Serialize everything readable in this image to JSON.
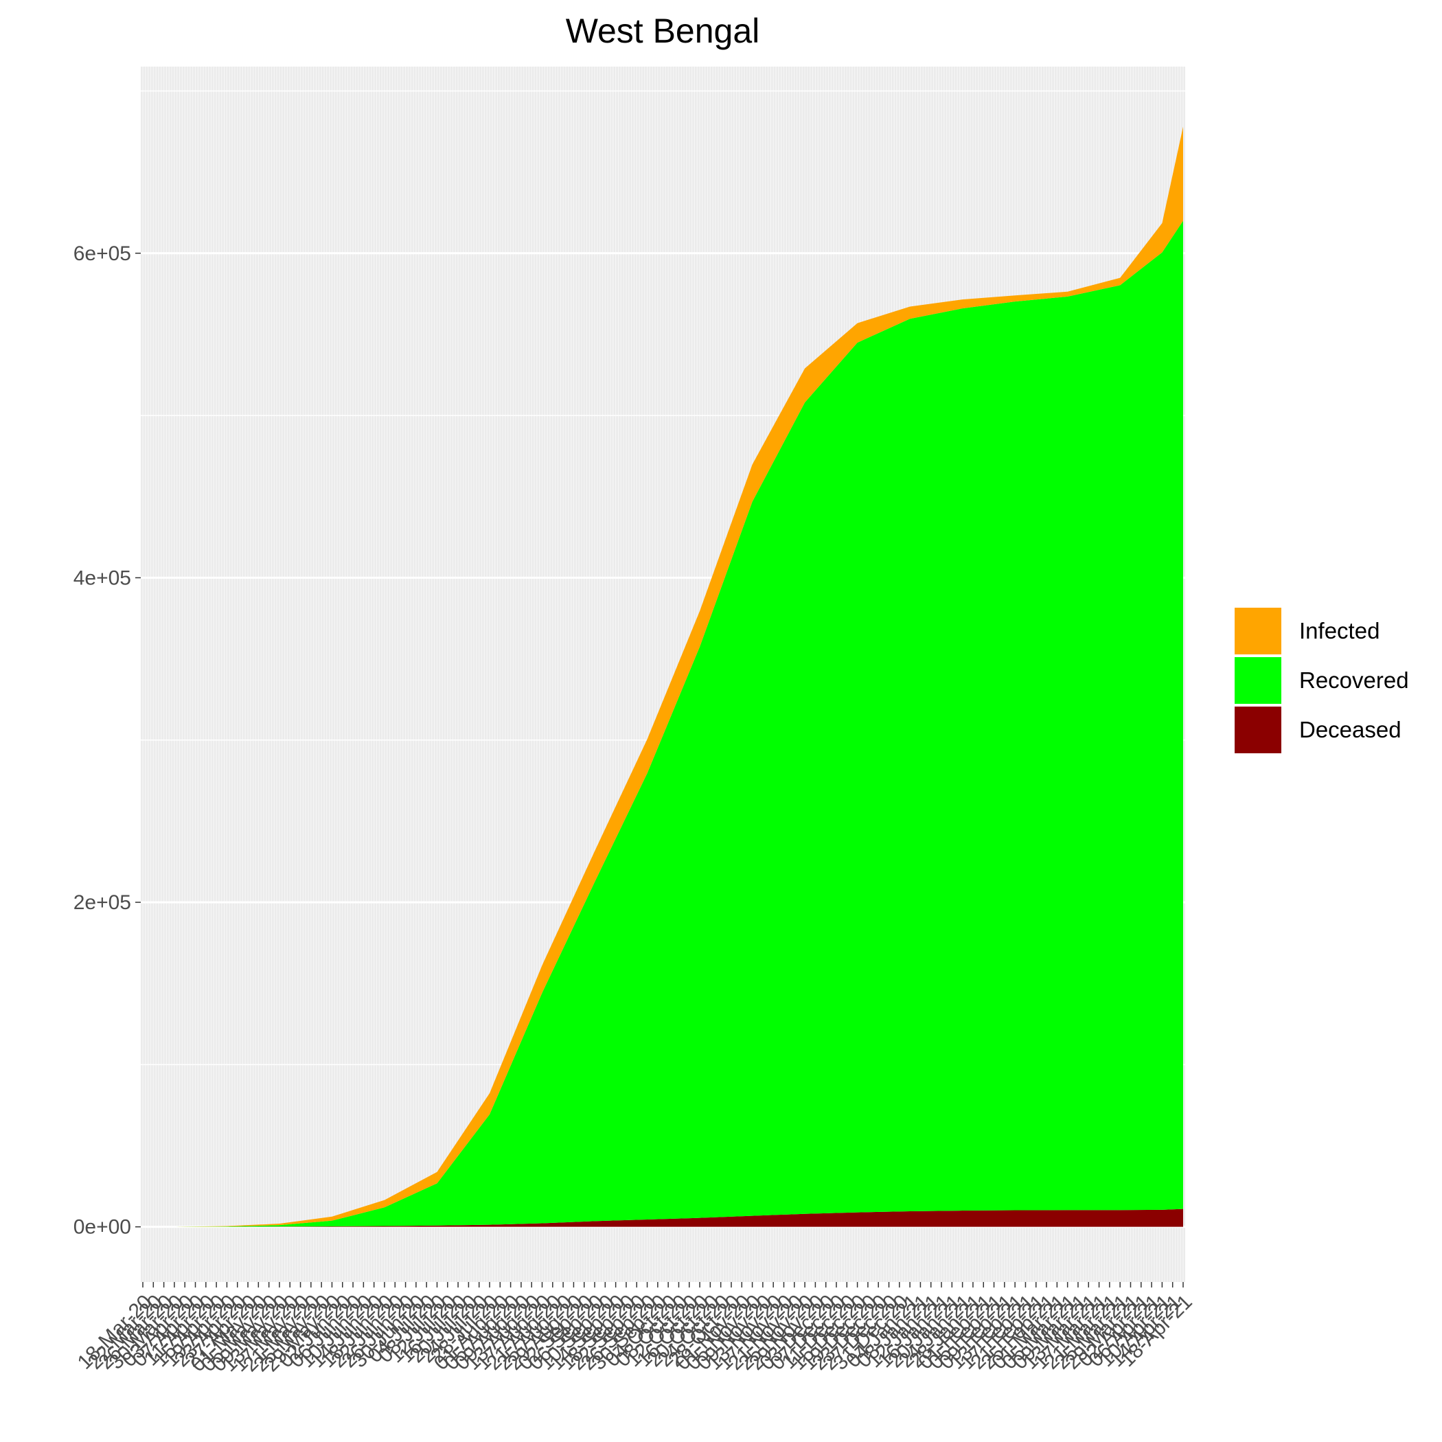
{
  "chart_data": {
    "type": "area",
    "title": "West Bengal",
    "xlabel": "",
    "ylabel": "",
    "ylim": [
      -34000,
      715000
    ],
    "y_ticks": [
      {
        "value": 0,
        "label": "0e+00"
      },
      {
        "value": 200000,
        "label": "2e+05"
      },
      {
        "value": 400000,
        "label": "4e+05"
      },
      {
        "value": 600000,
        "label": "6e+05"
      }
    ],
    "x_ticks": [
      "18-Mar-20",
      "22-Mar-20",
      "26-Mar-20",
      "30-Mar-20",
      "03-Apr-20",
      "07-Apr-20",
      "11-Apr-20",
      "15-Apr-20",
      "19-Apr-20",
      "23-Apr-20",
      "27-Apr-20",
      "01-May-20",
      "05-May-20",
      "09-May-20",
      "13-May-20",
      "17-May-20",
      "21-May-20",
      "25-May-20",
      "29-May-20",
      "02-Jun-20",
      "06-Jun-20",
      "10-Jun-20",
      "14-Jun-20",
      "18-Jun-20",
      "22-Jun-20",
      "26-Jun-20",
      "30-Jun-20",
      "04-Jul-20",
      "08-Jul-20",
      "12-Jul-20",
      "16-Jul-20",
      "20-Jul-20",
      "24-Jul-20",
      "28-Jul-20",
      "01-Aug-20",
      "05-Aug-20",
      "09-Aug-20",
      "13-Aug-20",
      "17-Aug-20",
      "21-Aug-20",
      "25-Aug-20",
      "29-Aug-20",
      "02-Sep-20",
      "06-Sep-20",
      "10-Sep-20",
      "14-Sep-20",
      "18-Sep-20",
      "22-Sep-20",
      "26-Sep-20",
      "30-Sep-20",
      "04-Oct-20",
      "08-Oct-20",
      "12-Oct-20",
      "16-Oct-20",
      "20-Oct-20",
      "24-Oct-20",
      "28-Oct-20",
      "01-Nov-20",
      "05-Nov-20",
      "09-Nov-20",
      "13-Nov-20",
      "17-Nov-20",
      "21-Nov-20",
      "25-Nov-20",
      "29-Nov-20",
      "03-Dec-20",
      "07-Dec-20",
      "11-Dec-20",
      "15-Dec-20",
      "19-Dec-20",
      "23-Dec-20",
      "27-Dec-20",
      "31-Dec-20",
      "04-Jan-21",
      "08-Jan-21",
      "12-Jan-21",
      "16-Jan-21",
      "20-Jan-21",
      "24-Jan-21",
      "28-Jan-21",
      "01-Feb-21",
      "05-Feb-21",
      "09-Feb-21",
      "13-Feb-21",
      "17-Feb-21",
      "21-Feb-21",
      "25-Feb-21",
      "01-Mar-21",
      "05-Mar-21",
      "09-Mar-21",
      "13-Mar-21",
      "17-Mar-21",
      "21-Mar-21",
      "25-Mar-21",
      "29-Mar-21",
      "02-Apr-21",
      "06-Apr-21",
      "10-Apr-21",
      "14-Apr-21",
      "18-Apr-21"
    ],
    "stacking": "stacked",
    "series": [
      {
        "name": "Deceased",
        "color": "#8b0000",
        "x": [
          "18-Mar-20",
          "30-Mar-20",
          "19-Apr-20",
          "09-May-20",
          "29-May-20",
          "18-Jun-20",
          "08-Jul-20",
          "28-Jul-20",
          "17-Aug-20",
          "06-Sep-20",
          "26-Sep-20",
          "16-Oct-20",
          "05-Nov-20",
          "25-Nov-20",
          "15-Dec-20",
          "04-Jan-21",
          "24-Jan-21",
          "13-Feb-21",
          "05-Mar-21",
          "25-Mar-21",
          "10-Apr-21",
          "18-Apr-21"
        ],
        "values": [
          0,
          0,
          10,
          150,
          300,
          500,
          800,
          1300,
          2200,
          3500,
          4500,
          5500,
          6800,
          8000,
          8900,
          9600,
          10000,
          10200,
          10300,
          10300,
          10500,
          11000
        ]
      },
      {
        "name": "Recovered",
        "color": "#00ff00",
        "x": [
          "18-Mar-20",
          "30-Mar-20",
          "19-Apr-20",
          "09-May-20",
          "29-May-20",
          "18-Jun-20",
          "08-Jul-20",
          "28-Jul-20",
          "17-Aug-20",
          "06-Sep-20",
          "26-Sep-20",
          "16-Oct-20",
          "05-Nov-20",
          "25-Nov-20",
          "15-Dec-20",
          "04-Jan-21",
          "24-Jan-21",
          "13-Feb-21",
          "05-Mar-21",
          "25-Mar-21",
          "10-Apr-21",
          "18-Apr-21"
        ],
        "values": [
          0,
          0,
          200,
          900,
          3500,
          11500,
          26000,
          68000,
          142000,
          209000,
          275000,
          352000,
          440000,
          500000,
          536000,
          550000,
          556000,
          560000,
          563000,
          570000,
          590000,
          609000
        ]
      },
      {
        "name": "Infected",
        "color": "#ffa500",
        "x": [
          "18-Mar-20",
          "30-Mar-20",
          "19-Apr-20",
          "09-May-20",
          "29-May-20",
          "18-Jun-20",
          "08-Jul-20",
          "28-Jul-20",
          "17-Aug-20",
          "06-Sep-20",
          "26-Sep-20",
          "16-Oct-20",
          "05-Nov-20",
          "25-Nov-20",
          "15-Dec-20",
          "04-Jan-21",
          "24-Jan-21",
          "13-Feb-21",
          "05-Mar-21",
          "25-Mar-21",
          "10-Apr-21",
          "18-Apr-21"
        ],
        "values": [
          0,
          0,
          300,
          900,
          2500,
          4500,
          7000,
          13000,
          17000,
          19000,
          21000,
          22000,
          23000,
          21000,
          12000,
          7500,
          5500,
          3800,
          3000,
          4500,
          18000,
          58000
        ]
      }
    ],
    "legend": {
      "position": "right",
      "entries": [
        {
          "label": "Infected",
          "color": "#ffa500"
        },
        {
          "label": "Recovered",
          "color": "#00ff00"
        },
        {
          "label": "Deceased",
          "color": "#8b0000"
        }
      ]
    },
    "grid": true,
    "panel_background": "#ebebeb"
  }
}
